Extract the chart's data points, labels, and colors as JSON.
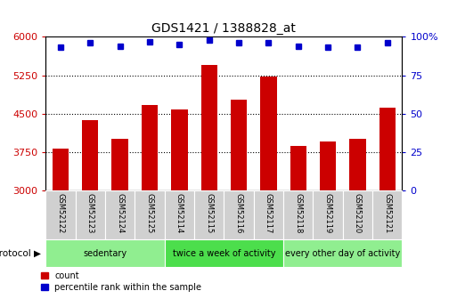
{
  "title": "GDS1421 / 1388828_at",
  "samples": [
    "GSM52122",
    "GSM52123",
    "GSM52124",
    "GSM52125",
    "GSM52114",
    "GSM52115",
    "GSM52116",
    "GSM52117",
    "GSM52118",
    "GSM52119",
    "GSM52120",
    "GSM52121"
  ],
  "counts": [
    3820,
    4380,
    4000,
    4660,
    4580,
    5450,
    4780,
    5220,
    3870,
    3950,
    4000,
    4610
  ],
  "percentiles": [
    93,
    96,
    94,
    97,
    95,
    98,
    96,
    96,
    94,
    93,
    93,
    96
  ],
  "groups": [
    {
      "label": "sedentary",
      "start": 0,
      "end": 4,
      "color": "#90ee90"
    },
    {
      "label": "twice a week of activity",
      "start": 4,
      "end": 8,
      "color": "#4cde4c"
    },
    {
      "label": "every other day of activity",
      "start": 8,
      "end": 12,
      "color": "#90ee90"
    }
  ],
  "ylim": [
    3000,
    6000
  ],
  "yticks": [
    3000,
    3750,
    4500,
    5250,
    6000
  ],
  "y2ticks": [
    0,
    25,
    50,
    75,
    100
  ],
  "y2lim": [
    0,
    100
  ],
  "bar_color": "#cc0000",
  "dot_color": "#0000cc",
  "grid_color": "#000000",
  "title_color": "#000000",
  "left_axis_color": "#cc0000",
  "right_axis_color": "#0000cc",
  "bg_color": "#ffffff",
  "plot_bg": "#ffffff",
  "sample_label_bg": "#d0d0d0",
  "legend_count_color": "#cc0000",
  "legend_pct_color": "#0000cc",
  "bar_width": 0.55
}
